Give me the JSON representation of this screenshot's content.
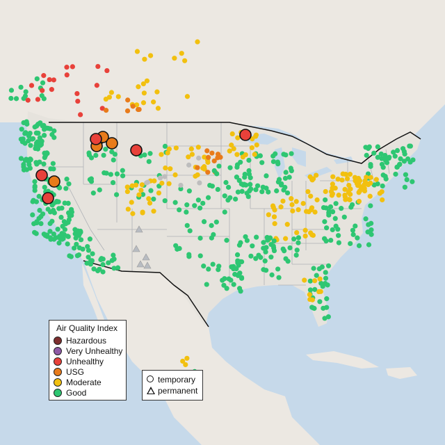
{
  "colors": {
    "water": "#c6d9ea",
    "land_foreign": "#ece8e2",
    "land_us": "#e6e3dd",
    "state_border": "#aeb1b6",
    "national_border": "#111111",
    "aqi": {
      "Hazardous": "#7e2f2f",
      "Very Unhealthy": "#8e5aa6",
      "Unhealthy": "#e8413a",
      "USG": "#e87b1b",
      "Moderate": "#f2c00f",
      "Good": "#2ec672",
      "No data": "#bdbdbd"
    }
  },
  "legend": {
    "title": "Air Quality Index",
    "items": [
      {
        "label": "Hazardous",
        "color": "#7e2f2f"
      },
      {
        "label": "Very Unhealthy",
        "color": "#8e5aa6"
      },
      {
        "label": "Unhealthy",
        "color": "#e8413a"
      },
      {
        "label": "USG",
        "color": "#e87b1b"
      },
      {
        "label": "Moderate",
        "color": "#f2c00f"
      },
      {
        "label": "Good",
        "color": "#2ec672"
      }
    ]
  },
  "type_legend": {
    "temporary": "temporary",
    "permanent": "permanent"
  }
}
